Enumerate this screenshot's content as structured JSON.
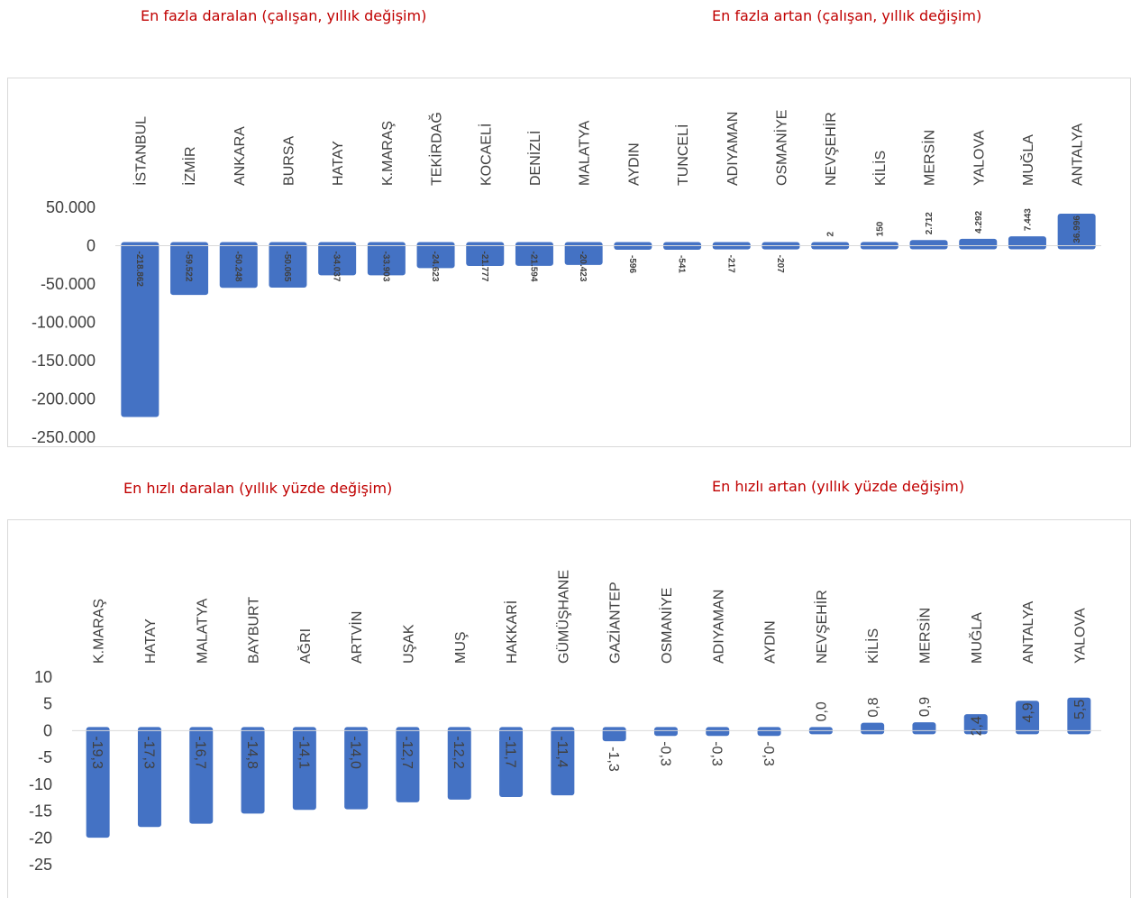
{
  "headings": {
    "chart1_left": "En fazla daralan (çalışan, yıllık değişim)",
    "chart1_right": "En fazla artan (çalışan, yıllık değişim)",
    "chart2_left": "En hızlı daralan  (yıllık yüzde değişim)",
    "chart2_right": "En hızlı artan (yıllık yüzde değişim)"
  },
  "colors": {
    "bar": "#4472c4",
    "heading": "#c00000",
    "text": "#404040",
    "axis": "#d9d9d9"
  },
  "chart_data": [
    {
      "type": "bar",
      "title": "",
      "xlabel": "",
      "ylabel": "",
      "ylim": [
        -250000,
        50000
      ],
      "yticks": [
        50000,
        0,
        -50000,
        -100000,
        -150000,
        -200000,
        -250000
      ],
      "ytick_labels": [
        "50.000",
        "0",
        "-50.000",
        "-100.000",
        "-150.000",
        "-200.000",
        "-250.000"
      ],
      "categories": [
        "İSTANBUL",
        "İZMİR",
        "ANKARA",
        "BURSA",
        "HATAY",
        "K.MARAŞ",
        "TEKİRDAĞ",
        "KOCAELİ",
        "DENİZLİ",
        "MALATYA",
        "AYDIN",
        "TUNCELİ",
        "ADIYAMAN",
        "OSMANİYE",
        "NEVŞEHİR",
        "KİLİS",
        "MERSİN",
        "YALOVA",
        "MUĞLA",
        "ANTALYA"
      ],
      "values": [
        -218862,
        -59522,
        -50248,
        -50065,
        -34037,
        -33903,
        -24623,
        -21777,
        -21594,
        -20423,
        -596,
        -541,
        -217,
        -207,
        2,
        150,
        2712,
        4292,
        7443,
        36996
      ],
      "value_labels": [
        "-218.862",
        "-59.522",
        "-50.248",
        "-50.065",
        "-34.037",
        "-33.903",
        "-24.623",
        "-21.777",
        "-21.594",
        "-20.423",
        "-596",
        "-541",
        "-217",
        "-207",
        "2",
        "150",
        "2.712",
        "4.292",
        "7.443",
        "36.996"
      ],
      "grid": false,
      "legend": "none"
    },
    {
      "type": "bar",
      "title": "",
      "xlabel": "",
      "ylabel": "",
      "ylim": [
        -25,
        10
      ],
      "yticks": [
        10,
        5,
        0,
        -5,
        -10,
        -15,
        -20,
        -25
      ],
      "ytick_labels": [
        "10",
        "5",
        "0",
        "-5",
        "-10",
        "-15",
        "-20",
        "-25"
      ],
      "categories": [
        "K.MARAŞ",
        "HATAY",
        "MALATYA",
        "BAYBURT",
        "AĞRI",
        "ARTVİN",
        "UŞAK",
        "MUŞ",
        "HAKKARİ",
        "GÜMÜŞHANE",
        "GAZİANTEP",
        "OSMANİYE",
        "ADIYAMAN",
        "AYDIN",
        "NEVŞEHİR",
        "KİLİS",
        "MERSİN",
        "MUĞLA",
        "ANTALYA",
        "YALOVA"
      ],
      "values": [
        -19.3,
        -17.3,
        -16.7,
        -14.8,
        -14.1,
        -14.0,
        -12.7,
        -12.2,
        -11.7,
        -11.4,
        -1.3,
        -0.3,
        -0.3,
        -0.3,
        0.0,
        0.8,
        0.9,
        2.4,
        4.9,
        5.5
      ],
      "value_labels": [
        "-19,3",
        "-17,3",
        "-16,7",
        "-14,8",
        "-14,1",
        "-14,0",
        "-12,7",
        "-12,2",
        "-11,7",
        "-11,4",
        "-1,3",
        "-0,3",
        "-0,3",
        "-0,3",
        "0,0",
        "0,8",
        "0,9",
        "2,4",
        "4,9",
        "5,5"
      ],
      "grid": false,
      "legend": "none"
    }
  ]
}
